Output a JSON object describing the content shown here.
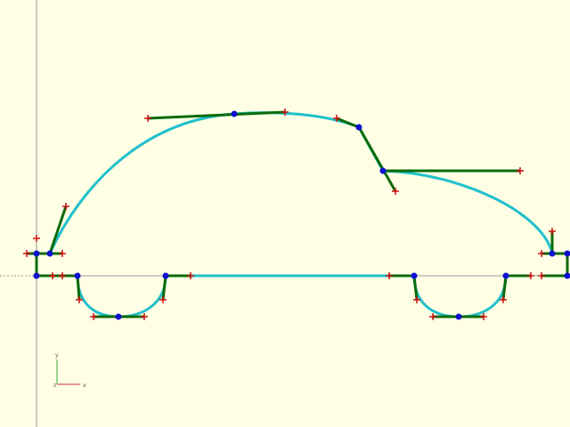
{
  "window": {
    "title": ""
  },
  "colors": {
    "background": "#ffffe5",
    "axis": "#9a9a9a",
    "curve": "#21c0cc",
    "handle": "#0a6b0a",
    "control_point": "#1010d0",
    "marker": "#cc1010",
    "gizmo_x": "#cc3333",
    "gizmo_y": "#33aa33"
  },
  "axes": {
    "origin_label": "",
    "gizmo": {
      "x_label": "x",
      "y_label": "y",
      "z_label": "z"
    }
  },
  "scene": {
    "description_icons": [
      "origin-axes",
      "axis-gizmo-icon"
    ]
  }
}
